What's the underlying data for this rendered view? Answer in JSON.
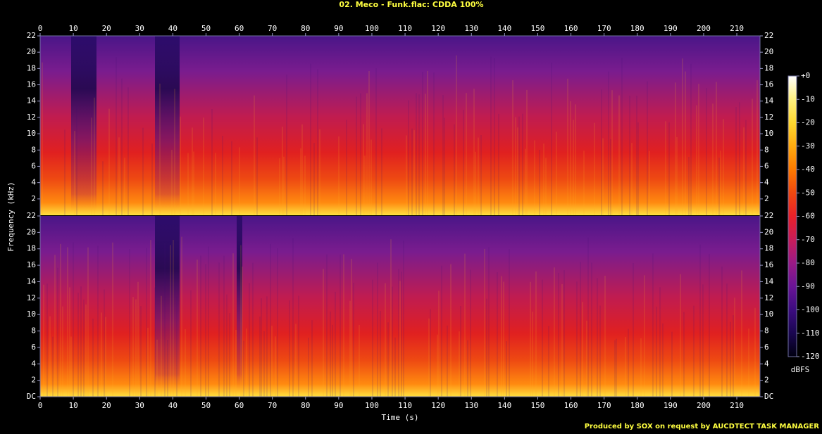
{
  "chart_data": [
    {
      "type": "spectrogram",
      "title": "02. Meco - Funk.flac: CDDA 100%",
      "ylabel": "Frequency (kHz)",
      "xlim": [
        0,
        217
      ],
      "xticks": [
        0,
        10,
        20,
        30,
        40,
        50,
        60,
        70,
        80,
        90,
        100,
        110,
        120,
        130,
        140,
        150,
        160,
        170,
        180,
        190,
        200,
        210
      ],
      "ylim": [
        0,
        22
      ],
      "yticks": [
        2,
        4,
        6,
        8,
        10,
        12,
        14,
        16,
        18,
        20,
        22
      ],
      "colorbar": {
        "label": "dBFS",
        "lim": [
          -120,
          0
        ],
        "ticks": [
          {
            "value": 0,
            "label": "+0"
          },
          -10,
          -20,
          -30,
          -40,
          -50,
          -60,
          -70,
          -80,
          -90,
          -100,
          -110,
          -120
        ],
        "colors": [
          "#000010",
          "#1a0650",
          "#3c0c80",
          "#6a1496",
          "#9a1a86",
          "#c81c5a",
          "#e8202a",
          "#f04810",
          "#ff7a00",
          "#ffaa10",
          "#ffd830",
          "#fff080",
          "#ffffff"
        ]
      }
    },
    {
      "type": "spectrogram",
      "xlabel": "Time (s)",
      "xlim": [
        0,
        217
      ],
      "xticks": [
        0,
        10,
        20,
        30,
        40,
        50,
        60,
        70,
        80,
        90,
        100,
        110,
        120,
        130,
        140,
        150,
        160,
        170,
        180,
        190,
        200,
        210
      ],
      "ylim": [
        0,
        22
      ],
      "yticks": [
        {
          "value": 0,
          "label": "DC"
        },
        2,
        4,
        6,
        8,
        10,
        12,
        14,
        16,
        18,
        20,
        22
      ]
    }
  ],
  "footer": "Produced by SOX on request by AUCDTECT TASK MANAGER"
}
